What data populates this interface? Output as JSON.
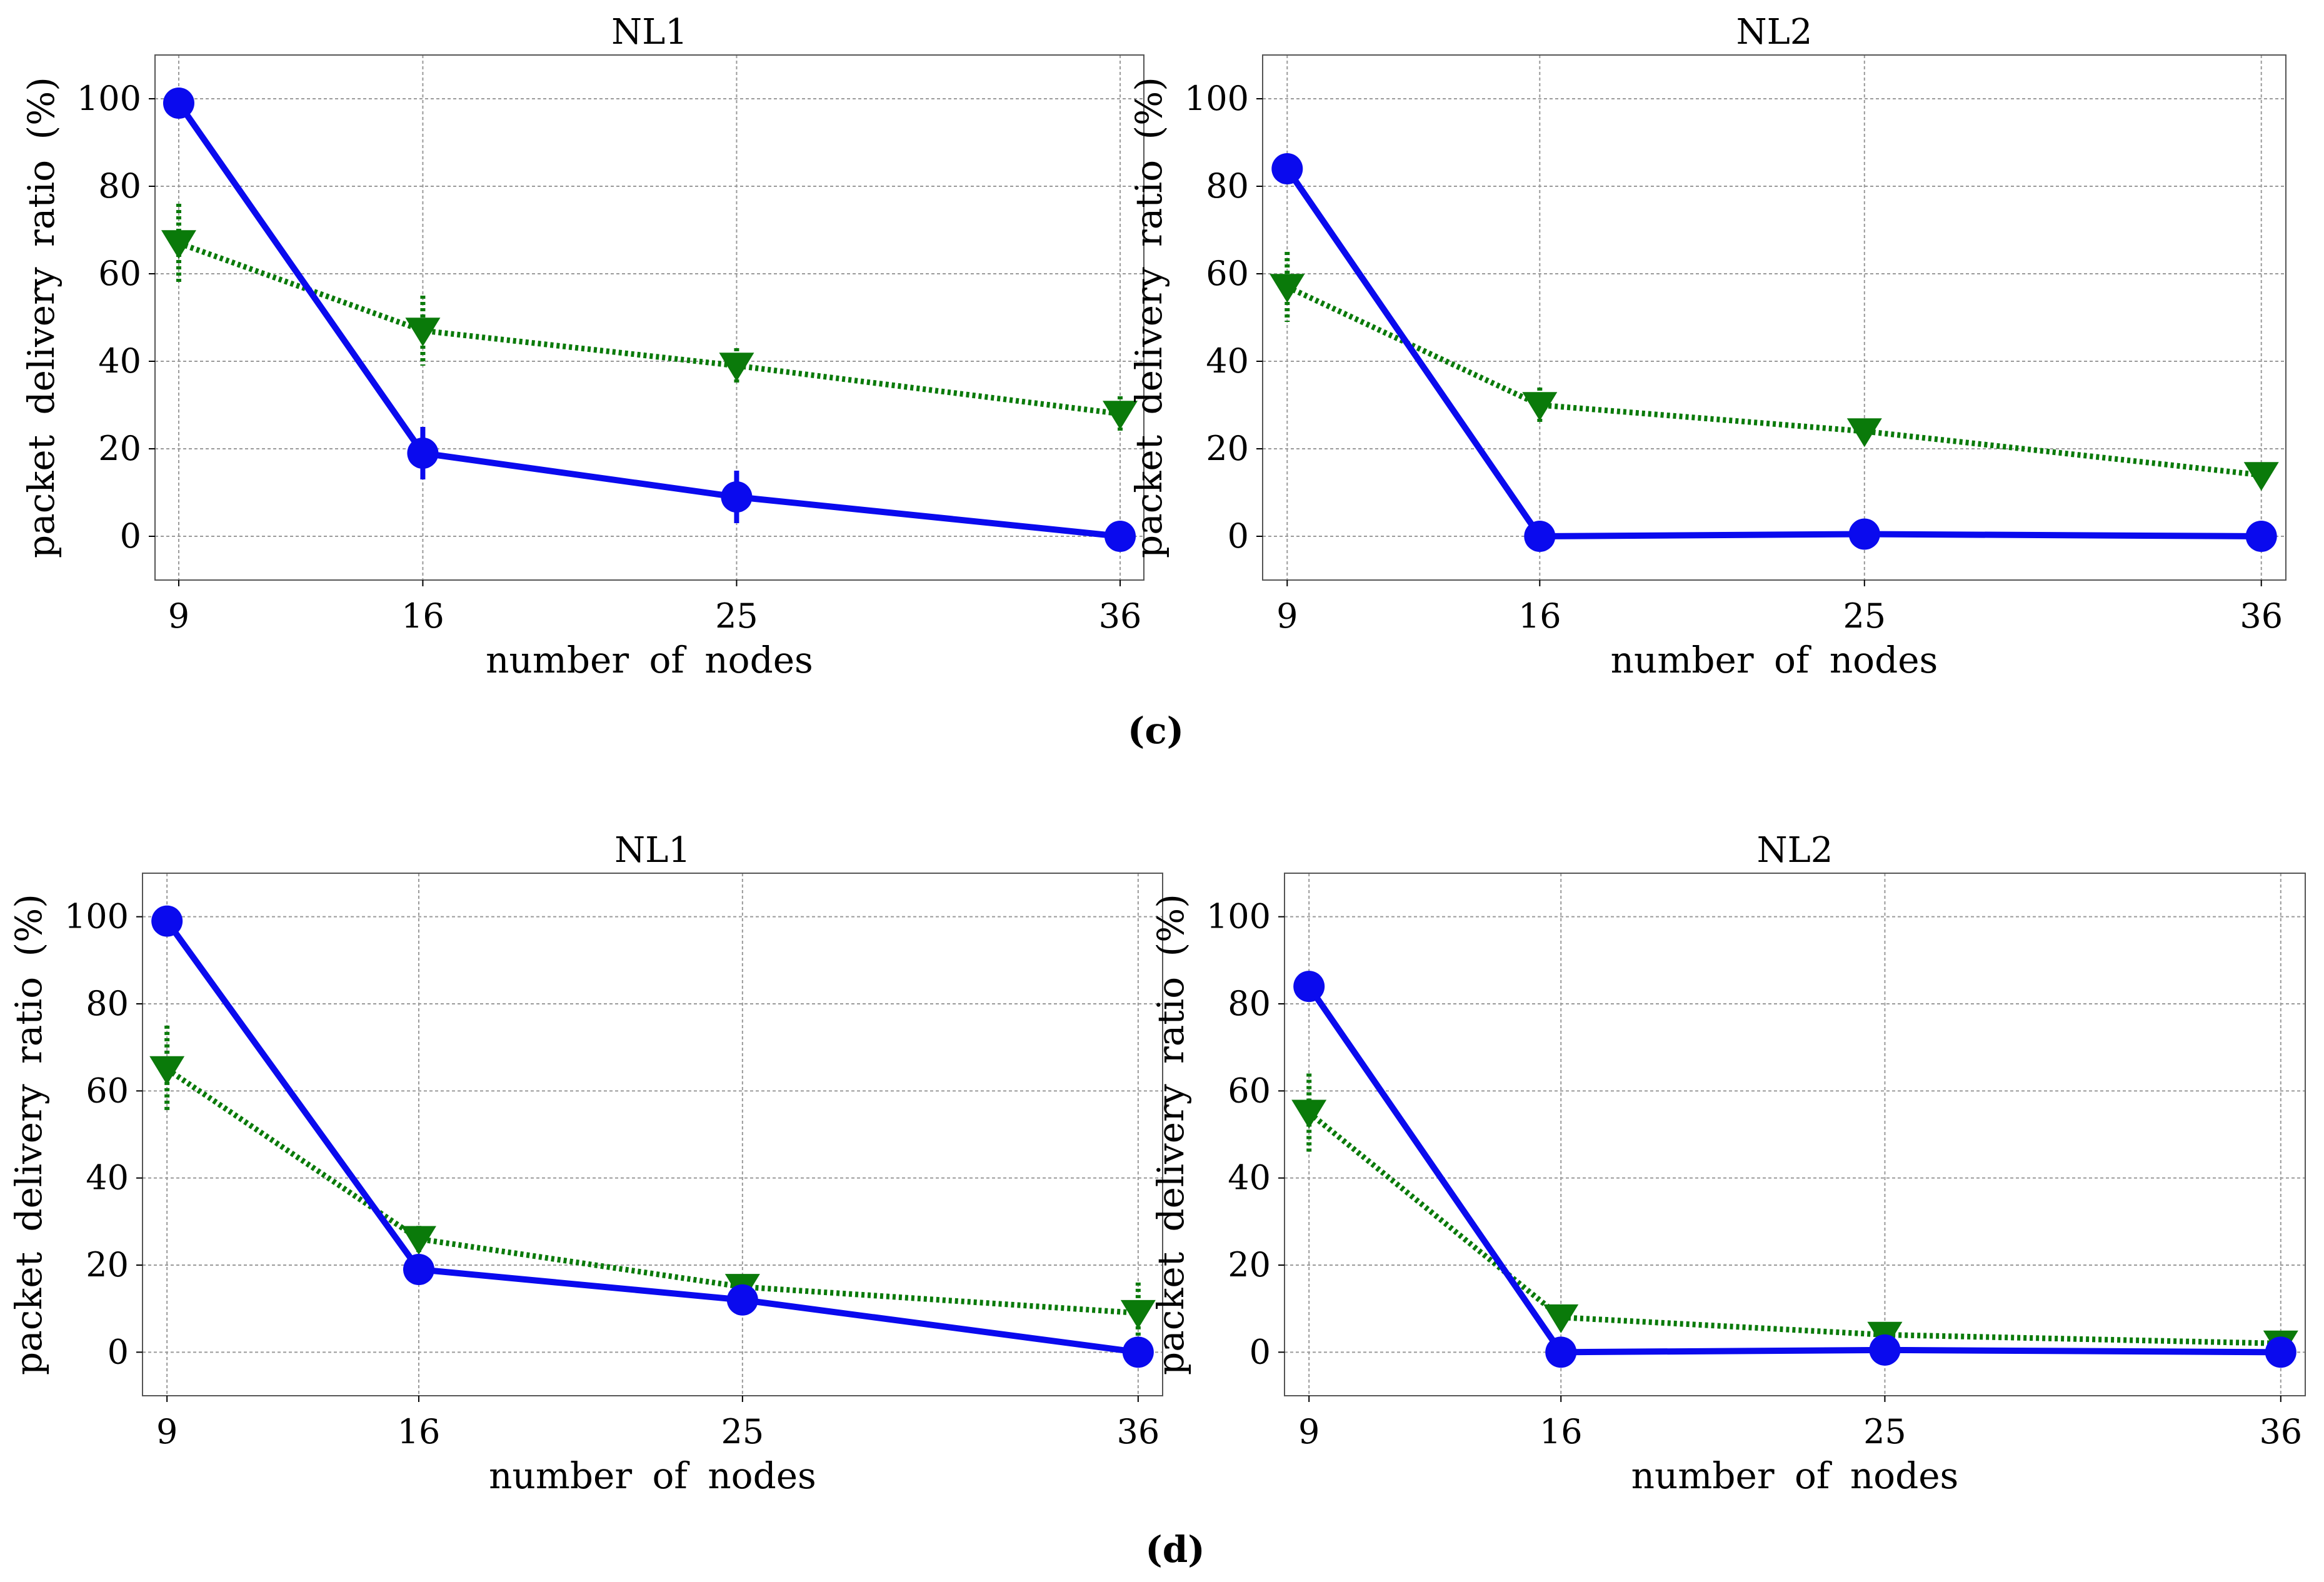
{
  "captions": {
    "c": "(c)",
    "d": "(d)"
  },
  "colors": {
    "series_a": "#0a0aee",
    "series_b": "#0a7a0a",
    "grid": "#9a9a9a"
  },
  "chart_data": [
    {
      "panel": "c-left",
      "type": "line",
      "title": "NL1",
      "xlabel": "number of nodes",
      "ylabel": "packet delivery ratio (%)",
      "x": [
        9,
        16,
        25,
        36
      ],
      "xticks": [
        "9",
        "16",
        "25",
        "36"
      ],
      "yticks": [
        "0",
        "20",
        "40",
        "60",
        "80",
        "100"
      ],
      "ylim": [
        -10,
        110
      ],
      "grid": true,
      "series": [
        {
          "name": "solid-circle",
          "marker": "circle",
          "style": "solid",
          "values": [
            99,
            19,
            9,
            0
          ],
          "err": [
            1,
            6,
            6,
            1
          ]
        },
        {
          "name": "dotted-triangle",
          "marker": "triangle-down",
          "style": "dotted",
          "values": [
            67,
            47,
            39,
            28
          ],
          "err": [
            9,
            8,
            4,
            4
          ]
        }
      ]
    },
    {
      "panel": "c-right",
      "type": "line",
      "title": "NL2",
      "xlabel": "number of nodes",
      "ylabel": "packet delivery ratio (%)",
      "x": [
        9,
        16,
        25,
        36
      ],
      "xticks": [
        "9",
        "16",
        "25",
        "36"
      ],
      "yticks": [
        "0",
        "20",
        "40",
        "60",
        "80",
        "100"
      ],
      "ylim": [
        -10,
        110
      ],
      "grid": true,
      "series": [
        {
          "name": "solid-circle",
          "marker": "circle",
          "style": "solid",
          "values": [
            84,
            0,
            0.5,
            0
          ],
          "err": [
            1,
            1,
            1,
            1
          ]
        },
        {
          "name": "dotted-triangle",
          "marker": "triangle-down",
          "style": "dotted",
          "values": [
            57,
            30,
            24,
            14
          ],
          "err": [
            8,
            4,
            2,
            2
          ]
        }
      ]
    },
    {
      "panel": "d-left",
      "type": "line",
      "title": "NL1",
      "xlabel": "number of nodes",
      "ylabel": "packet delivery ratio (%)",
      "x": [
        9,
        16,
        25,
        36
      ],
      "xticks": [
        "9",
        "16",
        "25",
        "36"
      ],
      "yticks": [
        "0",
        "20",
        "40",
        "60",
        "80",
        "100"
      ],
      "ylim": [
        -10,
        110
      ],
      "grid": true,
      "series": [
        {
          "name": "solid-circle",
          "marker": "circle",
          "style": "solid",
          "values": [
            99,
            19,
            12,
            0
          ],
          "err": [
            1,
            2,
            2,
            1
          ]
        },
        {
          "name": "dotted-triangle",
          "marker": "triangle-down",
          "style": "dotted",
          "values": [
            65,
            26,
            15,
            9
          ],
          "err": [
            10,
            3,
            2,
            7
          ]
        }
      ]
    },
    {
      "panel": "d-right",
      "type": "line",
      "title": "NL2",
      "xlabel": "number of nodes",
      "ylabel": "packet delivery ratio (%)",
      "x": [
        9,
        16,
        25,
        36
      ],
      "xticks": [
        "9",
        "16",
        "25",
        "36"
      ],
      "yticks": [
        "0",
        "20",
        "40",
        "60",
        "80",
        "100"
      ],
      "ylim": [
        -10,
        110
      ],
      "grid": true,
      "series": [
        {
          "name": "solid-circle",
          "marker": "circle",
          "style": "solid",
          "values": [
            84,
            0,
            0.5,
            0
          ],
          "err": [
            1,
            1,
            1,
            1
          ]
        },
        {
          "name": "dotted-triangle",
          "marker": "triangle-down",
          "style": "dotted",
          "values": [
            55,
            8,
            4,
            2
          ],
          "err": [
            9,
            2,
            1,
            1
          ]
        }
      ]
    }
  ]
}
